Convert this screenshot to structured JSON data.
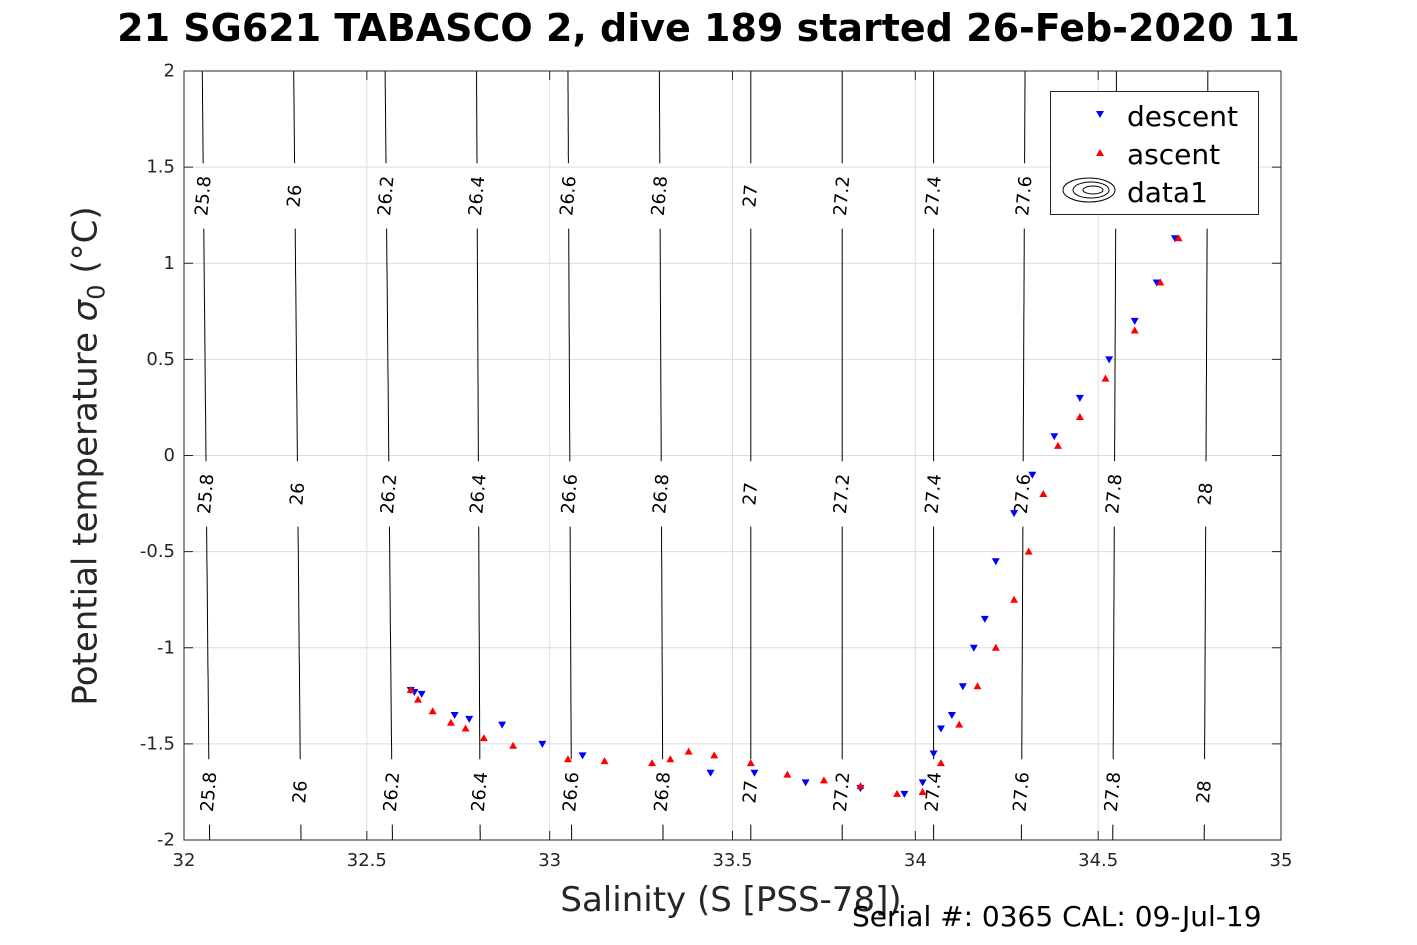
{
  "title": "21 SG621 TABASCO 2, dive 189 started 26-Feb-2020 11",
  "footer": "Serial #: 0365  CAL: 09-Jul-19",
  "colors": {
    "descent": "#0000ff",
    "ascent": "#ff0000",
    "contour": "#000000",
    "grid": "#dcdcdc",
    "axis": "#262626"
  },
  "chart_data": {
    "type": "scatter",
    "title": "21 SG621 TABASCO 2, dive 189 started 26-Feb-2020 11",
    "xlabel": "Salinity (S [PSS-78])",
    "ylabel_main": "Potential temperature ",
    "ylabel_sigma": "σ",
    "ylabel_sub": "0",
    "ylabel_unit": " (°C)",
    "xlim": [
      32,
      35
    ],
    "ylim": [
      -2,
      2
    ],
    "xticks": [
      "32",
      "32.5",
      "33",
      "33.5",
      "34",
      "34.5",
      "35"
    ],
    "yticks": [
      "-2",
      "-1.5",
      "-1",
      "-0.5",
      "0",
      "0.5",
      "1",
      "1.5",
      "2"
    ],
    "grid": true,
    "legend_position": "top-right",
    "legend": [
      "descent",
      "ascent",
      "data1"
    ],
    "contour_levels": [
      "25.8",
      "26",
      "26.2",
      "26.4",
      "26.6",
      "26.8",
      "27",
      "27.2",
      "27.4",
      "27.6",
      "27.8",
      "28"
    ],
    "contour_lines": [
      {
        "level": "25.8",
        "s_bottom": 32.07,
        "s_top": 32.05
      },
      {
        "level": "26",
        "s_bottom": 32.32,
        "s_top": 32.3
      },
      {
        "level": "26.2",
        "s_bottom": 32.57,
        "s_top": 32.55
      },
      {
        "level": "26.4",
        "s_bottom": 32.81,
        "s_top": 32.8
      },
      {
        "level": "26.6",
        "s_bottom": 33.06,
        "s_top": 33.05
      },
      {
        "level": "26.8",
        "s_bottom": 33.31,
        "s_top": 33.3
      },
      {
        "level": "27",
        "s_bottom": 33.55,
        "s_top": 33.55
      },
      {
        "level": "27.2",
        "s_bottom": 33.8,
        "s_top": 33.8
      },
      {
        "level": "27.4",
        "s_bottom": 34.05,
        "s_top": 34.05
      },
      {
        "level": "27.6",
        "s_bottom": 34.29,
        "s_top": 34.3
      },
      {
        "level": "27.8",
        "s_bottom": 34.54,
        "s_top": 34.55
      },
      {
        "level": "28",
        "s_bottom": 34.79,
        "s_top": 34.8
      }
    ],
    "series": [
      {
        "name": "descent",
        "marker": "triangle-down",
        "x": [
          32.62,
          32.63,
          32.65,
          32.74,
          32.78,
          32.87,
          32.98,
          33.09,
          33.44,
          33.56,
          33.7,
          33.85,
          33.97,
          34.02,
          34.05,
          34.07,
          34.1,
          34.13,
          34.16,
          34.19,
          34.22,
          34.27,
          34.32,
          34.38,
          34.45,
          34.53,
          34.6,
          34.66,
          34.71
        ],
        "y": [
          -1.22,
          -1.23,
          -1.24,
          -1.35,
          -1.37,
          -1.4,
          -1.5,
          -1.56,
          -1.65,
          -1.65,
          -1.7,
          -1.73,
          -1.76,
          -1.7,
          -1.55,
          -1.42,
          -1.35,
          -1.2,
          -1.0,
          -0.85,
          -0.55,
          -0.3,
          -0.1,
          0.1,
          0.3,
          0.5,
          0.7,
          0.9,
          1.13
        ]
      },
      {
        "name": "ascent",
        "marker": "triangle-up",
        "x": [
          32.62,
          32.64,
          32.68,
          32.73,
          32.77,
          32.82,
          32.9,
          33.05,
          33.15,
          33.28,
          33.33,
          33.38,
          33.45,
          33.55,
          33.65,
          33.75,
          33.85,
          33.95,
          34.02,
          34.07,
          34.12,
          34.17,
          34.22,
          34.27,
          34.31,
          34.35,
          34.39,
          34.45,
          34.52,
          34.6,
          34.67,
          34.72
        ],
        "y": [
          -1.22,
          -1.27,
          -1.33,
          -1.39,
          -1.42,
          -1.47,
          -1.51,
          -1.58,
          -1.59,
          -1.6,
          -1.58,
          -1.54,
          -1.56,
          -1.6,
          -1.66,
          -1.69,
          -1.72,
          -1.76,
          -1.75,
          -1.6,
          -1.4,
          -1.2,
          -1.0,
          -0.75,
          -0.5,
          -0.2,
          0.05,
          0.2,
          0.4,
          0.65,
          0.9,
          1.13
        ]
      }
    ]
  }
}
